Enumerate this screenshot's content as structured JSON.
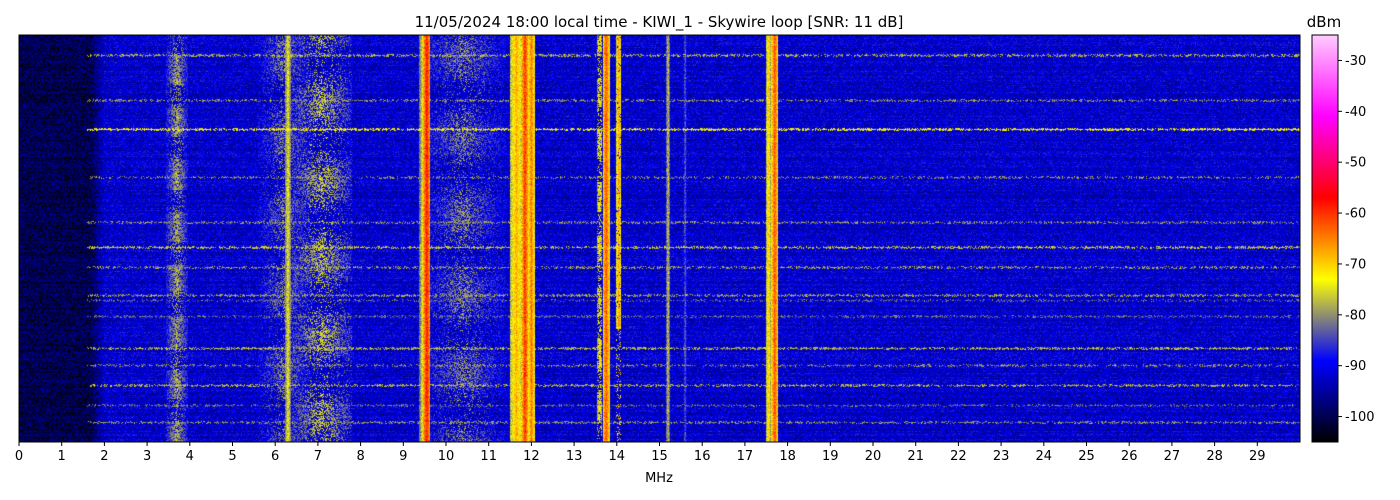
{
  "chart_data": {
    "type": "heatmap",
    "title": "11/05/2024 18:00 local time - KIWI_1 - Skywire loop [SNR: 11 dB]",
    "xlabel": "MHz",
    "ylabel": "",
    "xlim": [
      0,
      30
    ],
    "x_ticks": [
      "0",
      "1",
      "2",
      "3",
      "4",
      "5",
      "6",
      "7",
      "8",
      "9",
      "10",
      "11",
      "12",
      "13",
      "14",
      "15",
      "16",
      "17",
      "18",
      "19",
      "20",
      "21",
      "22",
      "23",
      "24",
      "25",
      "26",
      "27",
      "28",
      "29"
    ],
    "colorbar": {
      "label": "dBm",
      "range": [
        -105,
        -25
      ],
      "ticks": [
        "-30",
        "-40",
        "-50",
        "-60",
        "-70",
        "-80",
        "-90",
        "-100"
      ],
      "colors": [
        "#000000",
        "#0000ff",
        "#ffff00",
        "#ff0000",
        "#ff00ff",
        "#ffccff"
      ]
    },
    "background": {
      "noise_floor_dbm": -92,
      "quiet_low_band_mhz": [
        0,
        1.7
      ],
      "quiet_low_band_dbm": -100
    },
    "signals": [
      {
        "mhz": 3.7,
        "dbm": -78,
        "width_mhz": 0.25,
        "continuity": "intermittent"
      },
      {
        "mhz": 6.3,
        "dbm": -74,
        "width_mhz": 0.08,
        "continuity": "continuous"
      },
      {
        "mhz": 6.2,
        "dbm": -80,
        "width_mhz": 0.6,
        "continuity": "diffuse"
      },
      {
        "mhz": 7.1,
        "dbm": -76,
        "width_mhz": 0.7,
        "continuity": "diffuse"
      },
      {
        "mhz": 9.55,
        "dbm": -58,
        "width_mhz": 0.08,
        "continuity": "continuous"
      },
      {
        "mhz": 9.45,
        "dbm": -74,
        "width_mhz": 0.08,
        "continuity": "continuous"
      },
      {
        "mhz": 10.4,
        "dbm": -80,
        "width_mhz": 1.0,
        "continuity": "diffuse"
      },
      {
        "mhz": 11.65,
        "dbm": -68,
        "width_mhz": 0.15,
        "continuity": "continuous"
      },
      {
        "mhz": 11.85,
        "dbm": -60,
        "width_mhz": 0.08,
        "continuity": "continuous"
      },
      {
        "mhz": 12.0,
        "dbm": -64,
        "width_mhz": 0.08,
        "continuity": "continuous"
      },
      {
        "mhz": 13.6,
        "dbm": -70,
        "width_mhz": 0.06,
        "continuity": "intermittent"
      },
      {
        "mhz": 13.75,
        "dbm": -62,
        "width_mhz": 0.08,
        "continuity": "continuous"
      },
      {
        "mhz": 14.05,
        "dbm": -66,
        "width_mhz": 0.06,
        "continuity": "partial"
      },
      {
        "mhz": 15.2,
        "dbm": -76,
        "width_mhz": 0.05,
        "continuity": "continuous"
      },
      {
        "mhz": 15.6,
        "dbm": -82,
        "width_mhz": 0.04,
        "continuity": "continuous"
      },
      {
        "mhz": 17.55,
        "dbm": -70,
        "width_mhz": 0.06,
        "continuity": "continuous"
      },
      {
        "mhz": 17.7,
        "dbm": -62,
        "width_mhz": 0.08,
        "continuity": "continuous"
      }
    ],
    "interference_rows": [
      {
        "row": 0.05,
        "dbm": -78,
        "intensity": 0.8
      },
      {
        "row": 0.16,
        "dbm": -80,
        "intensity": 0.7
      },
      {
        "row": 0.23,
        "dbm": -74,
        "intensity": 1.0
      },
      {
        "row": 0.35,
        "dbm": -80,
        "intensity": 0.6
      },
      {
        "row": 0.46,
        "dbm": -80,
        "intensity": 0.7
      },
      {
        "row": 0.52,
        "dbm": -77,
        "intensity": 0.9
      },
      {
        "row": 0.57,
        "dbm": -79,
        "intensity": 0.7
      },
      {
        "row": 0.64,
        "dbm": -79,
        "intensity": 0.8
      },
      {
        "row": 0.65,
        "dbm": -82,
        "intensity": 0.5
      },
      {
        "row": 0.69,
        "dbm": -82,
        "intensity": 0.6
      },
      {
        "row": 0.77,
        "dbm": -78,
        "intensity": 0.9
      },
      {
        "row": 0.81,
        "dbm": -80,
        "intensity": 0.6
      },
      {
        "row": 0.86,
        "dbm": -78,
        "intensity": 0.8
      },
      {
        "row": 0.91,
        "dbm": -82,
        "intensity": 0.6
      },
      {
        "row": 0.95,
        "dbm": -80,
        "intensity": 0.7
      }
    ]
  }
}
